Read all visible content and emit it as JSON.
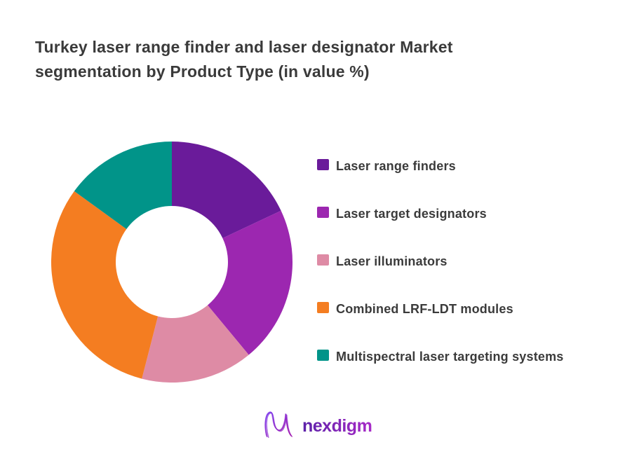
{
  "chart_data": {
    "type": "pie",
    "variant": "donut",
    "title": "Turkey laser range finder and laser designator Market segmentation by Product Type (in value %)",
    "unit": "%",
    "data_labels": false,
    "legend_position": "right",
    "start_angle_deg": 0,
    "direction": "clockwise",
    "inner_radius_ratio": 0.465,
    "segments": [
      {
        "label": "Laser range finders",
        "value": 18,
        "color": "#6A1B9A"
      },
      {
        "label": "Laser target designators",
        "value": 21,
        "color": "#9C27B0"
      },
      {
        "label": "Laser illuminators",
        "value": 15,
        "color": "#DE8BA5"
      },
      {
        "label": "Combined LRF-LDT modules",
        "value": 31,
        "color": "#F47D21"
      },
      {
        "label": "Multispectral laser targeting systems",
        "value": 15,
        "color": "#019489"
      }
    ]
  },
  "logo": {
    "text": "nexdigm",
    "gradient_start": "#5B21A8",
    "gradient_end": "#A82BC8"
  },
  "style": {
    "title_color": "#3a3a3a",
    "legend_text_color": "#3b3b3b",
    "background": "#ffffff"
  }
}
